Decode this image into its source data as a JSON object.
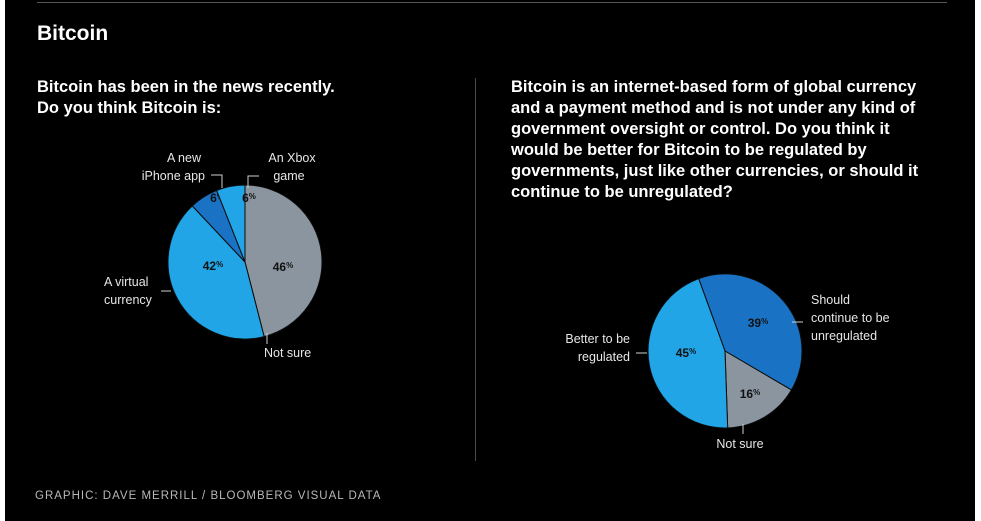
{
  "header": {
    "title": "Bitcoin"
  },
  "colors": {
    "background": "#000000",
    "slice_dark_blue": "#1a72c4",
    "slice_light_blue": "#21a5e6",
    "slice_gray": "#8a95a0"
  },
  "chart_data": [
    {
      "type": "pie",
      "question": "Bitcoin has been in the news recently.\nDo you think Bitcoin is:",
      "slices": [
        {
          "label": "Not sure",
          "value": 46,
          "color": "#8a95a0"
        },
        {
          "label": "A virtual currency",
          "value": 42,
          "color": "#21a5e6"
        },
        {
          "label": "A new iPhone app",
          "value": 6,
          "color": "#1a72c4"
        },
        {
          "label": "An Xbox game",
          "value": 6,
          "color": "#21a5e6"
        }
      ]
    },
    {
      "type": "pie",
      "question": "Bitcoin is an internet-based form of global currency and a payment method and is not under any kind of government oversight or control.  Do you think it would be better for Bitcoin to be regulated by governments, just like other currencies, or should it continue to be unregulated?",
      "slices": [
        {
          "label": "Should continue to be unregulated",
          "value": 39,
          "color": "#1a72c4"
        },
        {
          "label": "Not sure",
          "value": 16,
          "color": "#8a95a0"
        },
        {
          "label": "Better to be regulated",
          "value": 45,
          "color": "#21a5e6"
        }
      ]
    }
  ],
  "footer": {
    "credit": "GRAPHIC: DAVE MERRILL / BLOOMBERG VISUAL DATA"
  }
}
